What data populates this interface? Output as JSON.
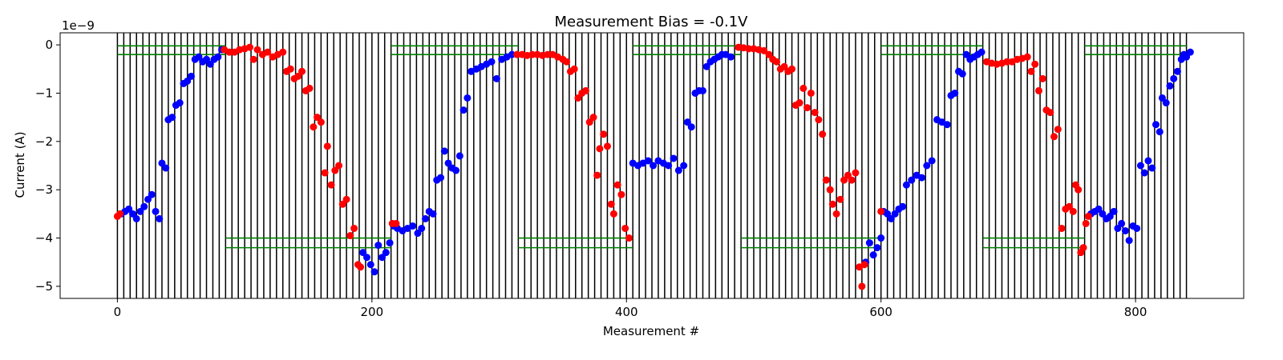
{
  "chart_data": {
    "type": "scatter",
    "title": "Measurement Bias = -0.1V",
    "xlabel": "Measurement #",
    "ylabel": "Current (A)",
    "y_scale_label": "1e−9",
    "xlim": [
      -45,
      885
    ],
    "ylim": [
      -5.25,
      0.25
    ],
    "x_ticks": [
      0,
      200,
      400,
      600,
      800
    ],
    "x_tick_labels": [
      "0",
      "200",
      "400",
      "600",
      "800"
    ],
    "y_ticks": [
      0,
      -1,
      -2,
      -3,
      -4,
      -5
    ],
    "y_tick_labels": [
      "0",
      "−1",
      "−2",
      "−3",
      "−4",
      "−5"
    ],
    "grid": false,
    "legend": "none",
    "series_colors": {
      "blue": "#0000ff",
      "red": "#ff0000",
      "vlines": "#000000",
      "hlines": "#008000"
    },
    "vlines": {
      "start": 0,
      "end": 840,
      "step": 5,
      "ymin": -5.25,
      "ymax": 0.25
    },
    "hlines": [
      {
        "xmin": 0,
        "xmax": 85,
        "y": [
          -0.02,
          -0.2
        ]
      },
      {
        "xmin": 215,
        "xmax": 315,
        "y": [
          -0.02,
          -0.2
        ]
      },
      {
        "xmin": 405,
        "xmax": 490,
        "y": [
          -0.02,
          -0.2
        ]
      },
      {
        "xmin": 600,
        "xmax": 680,
        "y": [
          -0.02,
          -0.2
        ]
      },
      {
        "xmin": 760,
        "xmax": 840,
        "y": [
          -0.02,
          -0.2
        ]
      },
      {
        "xmin": 85,
        "xmax": 215,
        "y": [
          -4.0,
          -4.2
        ]
      },
      {
        "xmin": 315,
        "xmax": 405,
        "y": [
          -4.0,
          -4.2
        ]
      },
      {
        "xmin": 490,
        "xmax": 600,
        "y": [
          -4.0,
          -4.2
        ]
      },
      {
        "xmin": 680,
        "xmax": 760,
        "y": [
          -4.0,
          -4.2
        ]
      }
    ],
    "series": [
      {
        "color": "blue",
        "points": [
          [
            3,
            -3.5
          ],
          [
            6,
            -3.45
          ],
          [
            9,
            -3.4
          ],
          [
            12,
            -3.5
          ],
          [
            15,
            -3.6
          ],
          [
            18,
            -3.45
          ],
          [
            21,
            -3.35
          ],
          [
            24,
            -3.2
          ],
          [
            27,
            -3.1
          ],
          [
            30,
            -3.45
          ],
          [
            33,
            -3.6
          ],
          [
            35,
            -2.45
          ],
          [
            38,
            -2.55
          ],
          [
            40,
            -1.55
          ],
          [
            43,
            -1.5
          ],
          [
            46,
            -1.25
          ],
          [
            49,
            -1.2
          ],
          [
            52,
            -0.8
          ],
          [
            55,
            -0.75
          ],
          [
            58,
            -0.65
          ],
          [
            61,
            -0.3
          ],
          [
            64,
            -0.25
          ],
          [
            67,
            -0.35
          ],
          [
            70,
            -0.3
          ],
          [
            73,
            -0.4
          ],
          [
            76,
            -0.3
          ],
          [
            79,
            -0.25
          ],
          [
            82,
            -0.1
          ],
          [
            193,
            -4.3
          ],
          [
            196,
            -4.4
          ],
          [
            199,
            -4.55
          ],
          [
            202,
            -4.7
          ],
          [
            205,
            -4.15
          ],
          [
            208,
            -4.4
          ],
          [
            211,
            -4.3
          ],
          [
            214,
            -4.1
          ],
          [
            217,
            -3.75
          ],
          [
            220,
            -3.8
          ],
          [
            224,
            -3.85
          ],
          [
            228,
            -3.8
          ],
          [
            232,
            -3.75
          ],
          [
            236,
            -3.9
          ],
          [
            239,
            -3.8
          ],
          [
            242,
            -3.6
          ],
          [
            245,
            -3.45
          ],
          [
            248,
            -3.5
          ],
          [
            251,
            -2.8
          ],
          [
            254,
            -2.75
          ],
          [
            257,
            -2.2
          ],
          [
            260,
            -2.45
          ],
          [
            263,
            -2.55
          ],
          [
            266,
            -2.6
          ],
          [
            269,
            -2.3
          ],
          [
            272,
            -1.35
          ],
          [
            275,
            -1.1
          ],
          [
            278,
            -0.55
          ],
          [
            282,
            -0.5
          ],
          [
            286,
            -0.45
          ],
          [
            290,
            -0.4
          ],
          [
            294,
            -0.35
          ],
          [
            298,
            -0.7
          ],
          [
            302,
            -0.3
          ],
          [
            306,
            -0.25
          ],
          [
            310,
            -0.2
          ],
          [
            405,
            -2.45
          ],
          [
            409,
            -2.5
          ],
          [
            413,
            -2.45
          ],
          [
            417,
            -2.4
          ],
          [
            421,
            -2.5
          ],
          [
            425,
            -2.4
          ],
          [
            429,
            -2.45
          ],
          [
            433,
            -2.5
          ],
          [
            437,
            -2.35
          ],
          [
            441,
            -2.6
          ],
          [
            445,
            -2.5
          ],
          [
            448,
            -1.6
          ],
          [
            451,
            -1.7
          ],
          [
            454,
            -1.0
          ],
          [
            457,
            -0.95
          ],
          [
            460,
            -0.95
          ],
          [
            463,
            -0.45
          ],
          [
            466,
            -0.35
          ],
          [
            469,
            -0.3
          ],
          [
            472,
            -0.25
          ],
          [
            475,
            -0.2
          ],
          [
            478,
            -0.2
          ],
          [
            482,
            -0.25
          ],
          [
            588,
            -4.5
          ],
          [
            591,
            -4.1
          ],
          [
            594,
            -4.35
          ],
          [
            597,
            -4.2
          ],
          [
            600,
            -4.0
          ],
          [
            602,
            -3.45
          ],
          [
            605,
            -3.5
          ],
          [
            608,
            -3.6
          ],
          [
            611,
            -3.5
          ],
          [
            614,
            -3.4
          ],
          [
            617,
            -3.35
          ],
          [
            620,
            -2.9
          ],
          [
            624,
            -2.8
          ],
          [
            628,
            -2.7
          ],
          [
            632,
            -2.75
          ],
          [
            636,
            -2.5
          ],
          [
            640,
            -2.4
          ],
          [
            644,
            -1.55
          ],
          [
            648,
            -1.6
          ],
          [
            652,
            -1.65
          ],
          [
            655,
            -1.05
          ],
          [
            658,
            -1.0
          ],
          [
            661,
            -0.55
          ],
          [
            664,
            -0.6
          ],
          [
            667,
            -0.2
          ],
          [
            670,
            -0.3
          ],
          [
            673,
            -0.25
          ],
          [
            676,
            -0.2
          ],
          [
            679,
            -0.15
          ],
          [
            765,
            -3.5
          ],
          [
            768,
            -3.45
          ],
          [
            771,
            -3.4
          ],
          [
            774,
            -3.5
          ],
          [
            777,
            -3.6
          ],
          [
            780,
            -3.55
          ],
          [
            783,
            -3.45
          ],
          [
            786,
            -3.8
          ],
          [
            789,
            -3.7
          ],
          [
            792,
            -3.85
          ],
          [
            795,
            -4.05
          ],
          [
            798,
            -3.75
          ],
          [
            801,
            -3.8
          ],
          [
            804,
            -2.5
          ],
          [
            807,
            -2.65
          ],
          [
            810,
            -2.4
          ],
          [
            813,
            -2.55
          ],
          [
            816,
            -1.65
          ],
          [
            819,
            -1.8
          ],
          [
            821,
            -1.1
          ],
          [
            824,
            -1.2
          ],
          [
            827,
            -0.85
          ],
          [
            830,
            -0.7
          ],
          [
            833,
            -0.55
          ],
          [
            836,
            -0.3
          ],
          [
            838,
            -0.2
          ],
          [
            840,
            -0.25
          ],
          [
            843,
            -0.15
          ]
        ]
      },
      {
        "color": "red",
        "points": [
          [
            0,
            -3.55
          ],
          [
            2,
            -3.5
          ],
          [
            84,
            -0.1
          ],
          [
            88,
            -0.15
          ],
          [
            92,
            -0.15
          ],
          [
            96,
            -0.1
          ],
          [
            100,
            -0.08
          ],
          [
            104,
            -0.05
          ],
          [
            107,
            -0.3
          ],
          [
            110,
            -0.1
          ],
          [
            114,
            -0.2
          ],
          [
            118,
            -0.15
          ],
          [
            122,
            -0.25
          ],
          [
            126,
            -0.2
          ],
          [
            130,
            -0.15
          ],
          [
            133,
            -0.55
          ],
          [
            136,
            -0.5
          ],
          [
            139,
            -0.7
          ],
          [
            142,
            -0.65
          ],
          [
            145,
            -0.55
          ],
          [
            148,
            -0.95
          ],
          [
            151,
            -0.9
          ],
          [
            154,
            -1.7
          ],
          [
            157,
            -1.5
          ],
          [
            160,
            -1.6
          ],
          [
            163,
            -2.65
          ],
          [
            165,
            -2.1
          ],
          [
            168,
            -2.9
          ],
          [
            171,
            -2.6
          ],
          [
            174,
            -2.5
          ],
          [
            177,
            -3.3
          ],
          [
            180,
            -3.2
          ],
          [
            183,
            -3.95
          ],
          [
            186,
            -3.8
          ],
          [
            189,
            -4.55
          ],
          [
            191,
            -4.6
          ],
          [
            216,
            -3.7
          ],
          [
            219,
            -3.7
          ],
          [
            314,
            -0.2
          ],
          [
            318,
            -0.2
          ],
          [
            322,
            -0.22
          ],
          [
            326,
            -0.2
          ],
          [
            330,
            -0.2
          ],
          [
            334,
            -0.22
          ],
          [
            338,
            -0.2
          ],
          [
            342,
            -0.2
          ],
          [
            346,
            -0.25
          ],
          [
            350,
            -0.3
          ],
          [
            353,
            -0.35
          ],
          [
            356,
            -0.55
          ],
          [
            359,
            -0.5
          ],
          [
            362,
            -1.1
          ],
          [
            365,
            -1.0
          ],
          [
            368,
            -0.95
          ],
          [
            371,
            -1.6
          ],
          [
            374,
            -1.5
          ],
          [
            377,
            -2.7
          ],
          [
            379,
            -2.15
          ],
          [
            382,
            -1.85
          ],
          [
            385,
            -2.1
          ],
          [
            388,
            -3.3
          ],
          [
            390,
            -3.5
          ],
          [
            393,
            -2.9
          ],
          [
            396,
            -3.1
          ],
          [
            399,
            -3.8
          ],
          [
            402,
            -4.0
          ],
          [
            488,
            -0.05
          ],
          [
            492,
            -0.06
          ],
          [
            496,
            -0.08
          ],
          [
            500,
            -0.08
          ],
          [
            504,
            -0.1
          ],
          [
            508,
            -0.12
          ],
          [
            512,
            -0.2
          ],
          [
            515,
            -0.3
          ],
          [
            518,
            -0.35
          ],
          [
            521,
            -0.5
          ],
          [
            524,
            -0.45
          ],
          [
            527,
            -0.55
          ],
          [
            530,
            -0.5
          ],
          [
            533,
            -1.25
          ],
          [
            536,
            -1.2
          ],
          [
            539,
            -0.9
          ],
          [
            542,
            -1.3
          ],
          [
            545,
            -1.0
          ],
          [
            548,
            -1.4
          ],
          [
            551,
            -1.55
          ],
          [
            554,
            -1.85
          ],
          [
            557,
            -2.8
          ],
          [
            560,
            -3.0
          ],
          [
            562,
            -3.3
          ],
          [
            565,
            -3.5
          ],
          [
            568,
            -3.2
          ],
          [
            571,
            -2.8
          ],
          [
            574,
            -2.7
          ],
          [
            577,
            -2.8
          ],
          [
            580,
            -2.65
          ],
          [
            583,
            -4.6
          ],
          [
            585,
            -5.0
          ],
          [
            587,
            -4.55
          ],
          [
            600,
            -3.45
          ],
          [
            683,
            -0.35
          ],
          [
            687,
            -0.38
          ],
          [
            691,
            -0.4
          ],
          [
            695,
            -0.38
          ],
          [
            699,
            -0.35
          ],
          [
            703,
            -0.35
          ],
          [
            707,
            -0.3
          ],
          [
            711,
            -0.28
          ],
          [
            715,
            -0.25
          ],
          [
            718,
            -0.55
          ],
          [
            721,
            -0.4
          ],
          [
            724,
            -0.95
          ],
          [
            727,
            -0.7
          ],
          [
            730,
            -1.35
          ],
          [
            733,
            -1.4
          ],
          [
            736,
            -1.9
          ],
          [
            739,
            -1.75
          ],
          [
            742,
            -3.8
          ],
          [
            745,
            -3.4
          ],
          [
            748,
            -3.35
          ],
          [
            751,
            -3.45
          ],
          [
            753,
            -2.9
          ],
          [
            755,
            -3.0
          ],
          [
            757,
            -4.3
          ],
          [
            759,
            -4.2
          ],
          [
            761,
            -3.7
          ],
          [
            763,
            -3.55
          ]
        ]
      }
    ]
  }
}
